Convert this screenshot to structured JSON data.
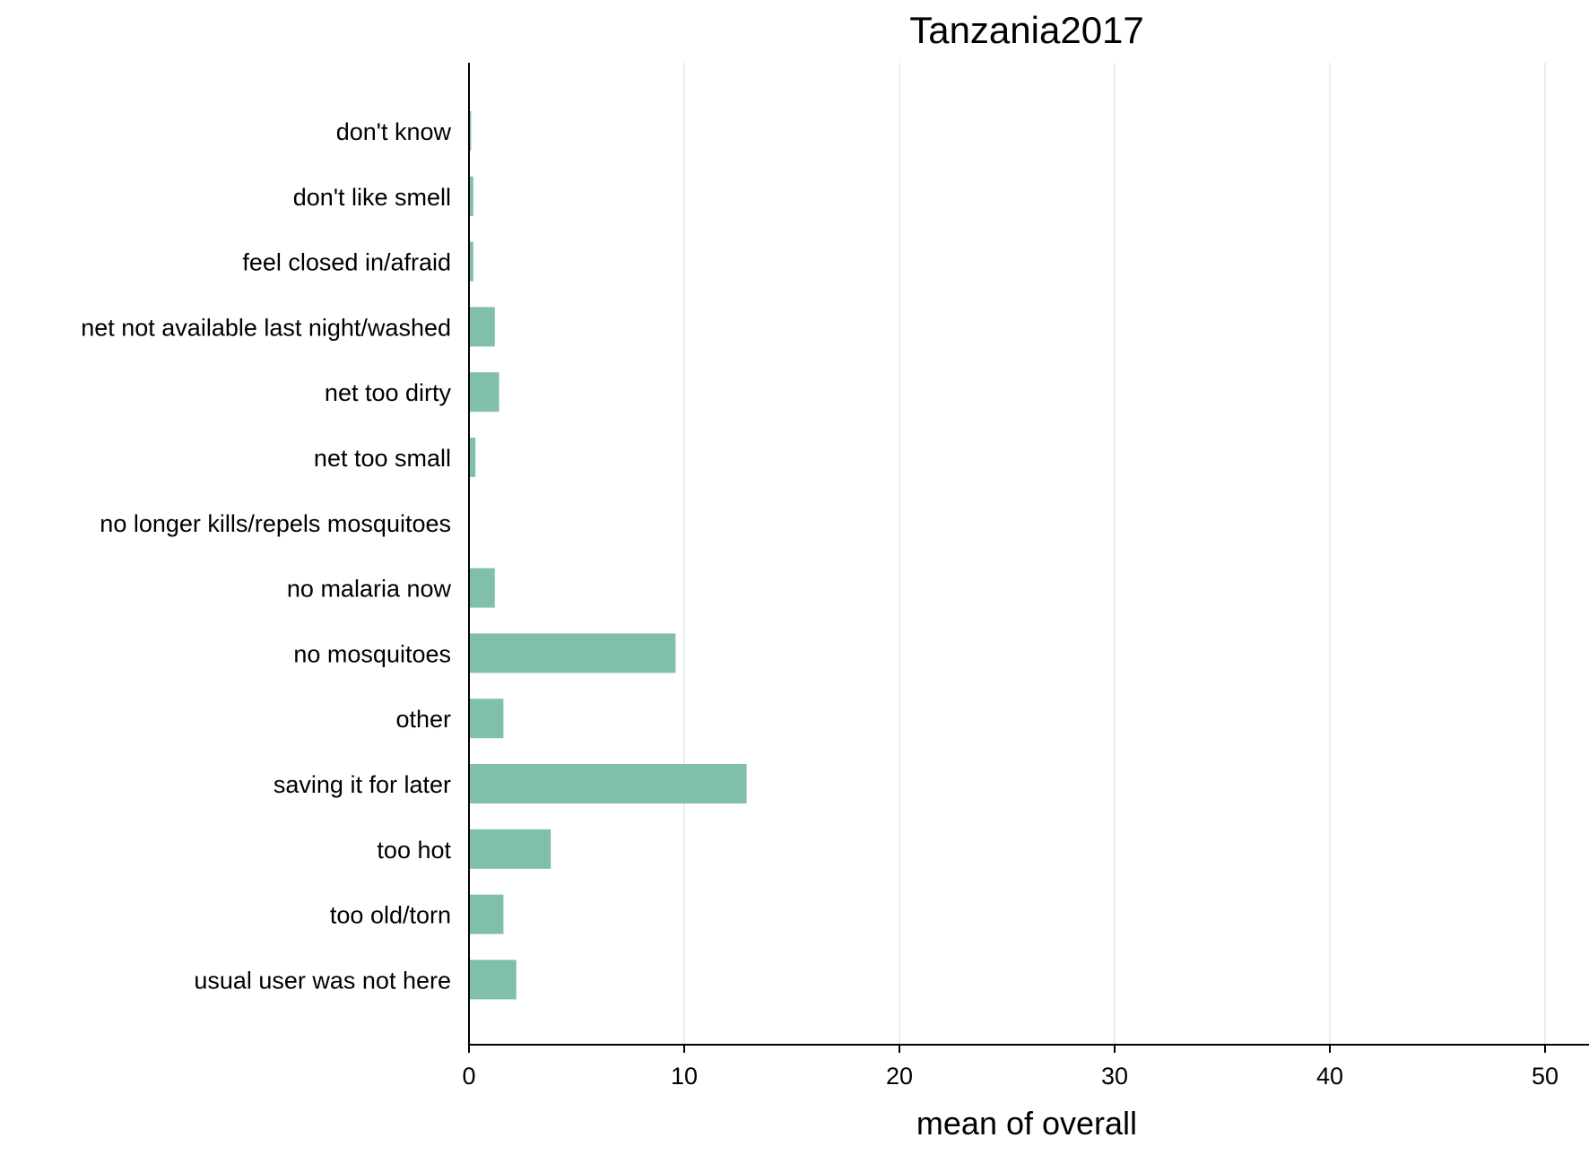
{
  "chart_data": {
    "type": "bar",
    "orientation": "horizontal",
    "title": "Tanzania2017",
    "xlabel": "mean of overall",
    "ylabel": "",
    "categories": [
      "don't know",
      "don't like smell",
      "feel closed in/afraid",
      "net not available last night/washed",
      "net too dirty",
      "net too small",
      "no longer kills/repels mosquitoes",
      "no malaria now",
      "no mosquitoes",
      "other",
      "saving it for later",
      "too hot",
      "too old/torn",
      "usual user was not here"
    ],
    "values": [
      0.1,
      0.2,
      0.2,
      1.2,
      1.4,
      0.3,
      0,
      1.2,
      9.6,
      1.6,
      12.9,
      3.8,
      1.6,
      2.2
    ],
    "xlim": [
      0,
      50
    ],
    "xticks": [
      0,
      10,
      20,
      30,
      40,
      50
    ],
    "grid": true,
    "legend": "none",
    "bar_color": "#80c0a8"
  }
}
